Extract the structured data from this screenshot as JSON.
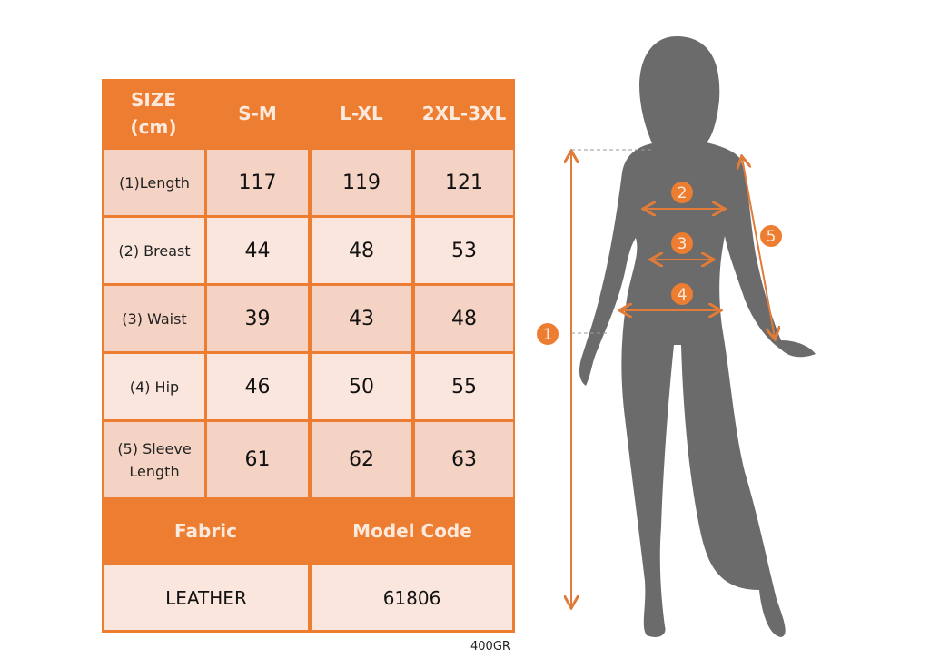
{
  "table": {
    "header": [
      "SIZE\n(cm)",
      "S-M",
      "L-XL",
      "2XL-3XL"
    ],
    "header_size_line1": "SIZE",
    "header_size_line2": "(cm)",
    "rows": [
      {
        "label": "(1)Length",
        "values": [
          "117",
          "119",
          "121"
        ]
      },
      {
        "label": "(2) Breast",
        "values": [
          "44",
          "48",
          "53"
        ]
      },
      {
        "label": "(3) Waist",
        "values": [
          "39",
          "43",
          "48"
        ]
      },
      {
        "label": "(4) Hip",
        "values": [
          "46",
          "50",
          "55"
        ]
      },
      {
        "label_line1": "(5) Sleeve",
        "label_line2": "Length",
        "values": [
          "61",
          "62",
          "63"
        ]
      }
    ],
    "footer_headers": [
      "Fabric",
      "Model Code"
    ],
    "footer_values": [
      "LEATHER",
      "61806"
    ]
  },
  "weight_note": "400GR",
  "figure": {
    "markers": [
      "1",
      "2",
      "3",
      "4",
      "5"
    ]
  },
  "colors": {
    "accent": "#ED7D31",
    "cell_dark": "#F5D3C4",
    "cell_light": "#FAE6DD",
    "silhouette": "#6B6B6B"
  }
}
